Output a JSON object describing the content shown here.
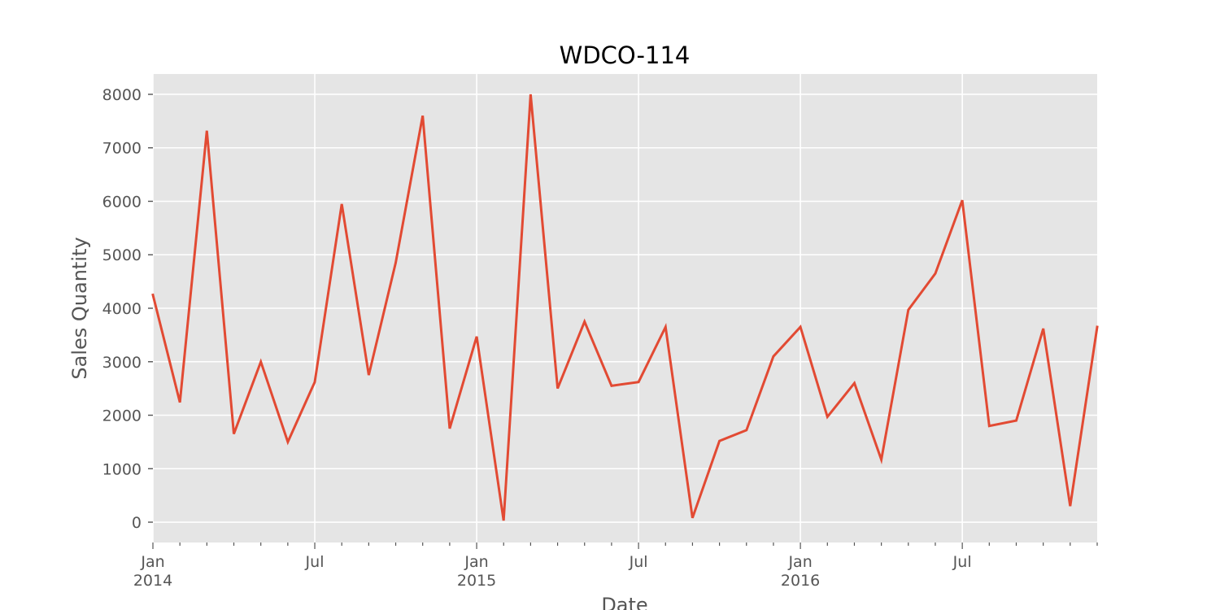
{
  "chart_data": {
    "type": "line",
    "title": "WDCO-114",
    "xlabel": "Date",
    "ylabel": "Sales Quantity",
    "x": [
      "2014-01",
      "2014-02",
      "2014-03",
      "2014-04",
      "2014-05",
      "2014-06",
      "2014-07",
      "2014-08",
      "2014-09",
      "2014-10",
      "2014-11",
      "2014-12",
      "2015-01",
      "2015-02",
      "2015-03",
      "2015-04",
      "2015-05",
      "2015-06",
      "2015-07",
      "2015-08",
      "2015-09",
      "2015-10",
      "2015-11",
      "2015-12",
      "2016-01",
      "2016-02",
      "2016-03",
      "2016-04",
      "2016-05",
      "2016-06",
      "2016-07",
      "2016-08",
      "2016-09",
      "2016-10",
      "2016-11",
      "2016-12"
    ],
    "series": [
      {
        "values": [
          4250,
          2240,
          7320,
          1650,
          3000,
          1500,
          2620,
          5950,
          2750,
          4850,
          7600,
          1750,
          3470,
          30,
          8000,
          2500,
          3750,
          2550,
          2620,
          3650,
          80,
          1520,
          1720,
          3100,
          3650,
          1970,
          2600,
          1170,
          3970,
          4650,
          6020,
          1800,
          1900,
          3620,
          300,
          3650
        ],
        "color": "#E24A33"
      }
    ],
    "ylim": [
      -380,
      8380
    ],
    "yticks": [
      0,
      1000,
      2000,
      3000,
      4000,
      5000,
      6000,
      7000,
      8000
    ],
    "ytick_labels": [
      "0",
      "1000",
      "2000",
      "3000",
      "4000",
      "5000",
      "6000",
      "7000",
      "8000"
    ],
    "xtick_labels": [
      {
        "month_index": 0,
        "line1": "Jan",
        "line2": "2014"
      },
      {
        "month_index": 6,
        "line1": "Jul",
        "line2": ""
      },
      {
        "month_index": 12,
        "line1": "Jan",
        "line2": "2015"
      },
      {
        "month_index": 18,
        "line1": "Jul",
        "line2": ""
      },
      {
        "month_index": 24,
        "line1": "Jan",
        "line2": "2016"
      },
      {
        "month_index": 30,
        "line1": "Jul",
        "line2": ""
      }
    ],
    "grid": true,
    "style": {
      "background": "#E5E5E5",
      "grid_color": "#FFFFFF",
      "tick_color": "#555555"
    }
  }
}
